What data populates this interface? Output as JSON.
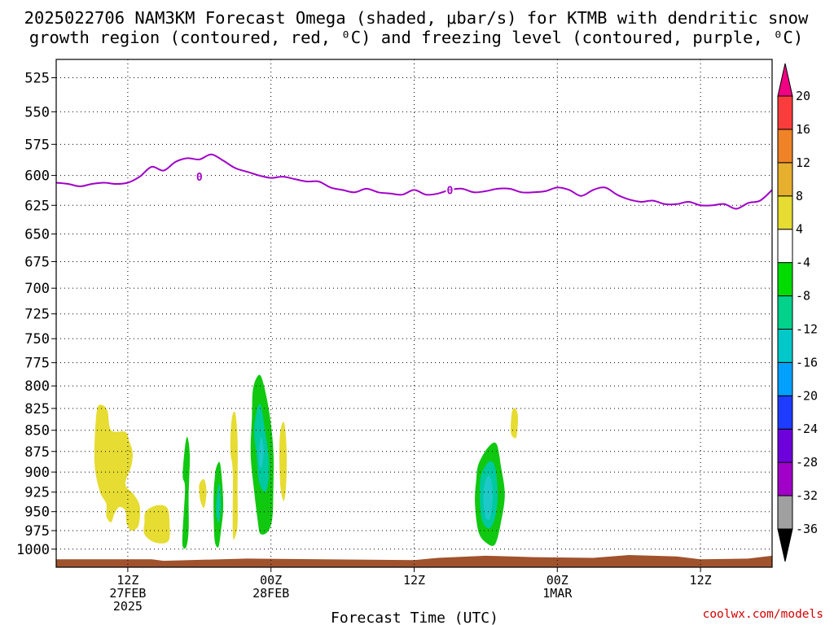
{
  "title": {
    "line1": "2025022706 NAM3KM Forecast Omega (shaded, μbar/s) for KTMB with dendritic snow",
    "line2": "growth region (contoured, red, ⁰C) and freezing level (contoured, purple, ⁰C)"
  },
  "credit": "coolwx.com/models",
  "chart_data": {
    "type": "time-height",
    "xlabel": "Forecast Time (UTC)",
    "ylabel": "",
    "x_unit": "forecast hour from 2025-02-27 06Z",
    "xlim": [
      0,
      60
    ],
    "y_unit": "hPa",
    "ylim": [
      1025,
      512
    ],
    "y_scale": "log",
    "yticks": [
      525,
      550,
      575,
      600,
      625,
      650,
      675,
      700,
      725,
      750,
      775,
      800,
      825,
      850,
      875,
      900,
      925,
      950,
      975,
      1000
    ],
    "x_ticks": [
      {
        "x": 6,
        "lines": [
          "12Z",
          "27FEB",
          "2025"
        ]
      },
      {
        "x": 18,
        "lines": [
          "00Z",
          "28FEB"
        ]
      },
      {
        "x": 30,
        "lines": [
          "12Z"
        ]
      },
      {
        "x": 42,
        "lines": [
          "00Z",
          "1MAR"
        ]
      },
      {
        "x": 54,
        "lines": [
          "12Z"
        ]
      }
    ],
    "grid": true,
    "freezing_level": {
      "label": "0",
      "label_positions": [
        [
          12,
          601
        ],
        [
          33,
          612
        ]
      ],
      "points": [
        [
          0,
          606
        ],
        [
          1,
          607
        ],
        [
          2,
          609
        ],
        [
          3,
          607
        ],
        [
          4,
          606
        ],
        [
          5,
          607
        ],
        [
          6,
          606
        ],
        [
          7,
          601
        ],
        [
          8,
          593
        ],
        [
          9,
          596
        ],
        [
          10,
          589
        ],
        [
          11,
          586
        ],
        [
          12,
          587
        ],
        [
          13,
          583
        ],
        [
          14,
          588
        ],
        [
          15,
          594
        ],
        [
          16,
          597
        ],
        [
          17,
          600
        ],
        [
          18,
          602
        ],
        [
          19,
          601
        ],
        [
          20,
          603
        ],
        [
          21,
          605
        ],
        [
          22,
          605
        ],
        [
          23,
          610
        ],
        [
          24,
          612
        ],
        [
          25,
          614
        ],
        [
          26,
          611
        ],
        [
          27,
          614
        ],
        [
          28,
          615
        ],
        [
          29,
          616
        ],
        [
          30,
          612
        ],
        [
          31,
          616
        ],
        [
          32,
          615
        ],
        [
          33,
          612
        ],
        [
          34,
          611
        ],
        [
          35,
          614
        ],
        [
          36,
          613
        ],
        [
          37,
          611
        ],
        [
          38,
          611
        ],
        [
          39,
          614
        ],
        [
          40,
          614
        ],
        [
          41,
          613
        ],
        [
          42,
          610
        ],
        [
          43,
          612
        ],
        [
          44,
          617
        ],
        [
          45,
          612
        ],
        [
          46,
          610
        ],
        [
          47,
          616
        ],
        [
          48,
          620
        ],
        [
          49,
          622
        ],
        [
          50,
          621
        ],
        [
          51,
          624
        ],
        [
          52,
          624
        ],
        [
          53,
          622
        ],
        [
          54,
          625
        ],
        [
          55,
          625
        ],
        [
          56,
          624
        ],
        [
          57,
          628
        ],
        [
          58,
          623
        ],
        [
          59,
          621
        ],
        [
          60,
          612
        ]
      ]
    },
    "omega_regions": [
      {
        "category": "4 to 8",
        "color": "#e6dc32",
        "points": [
          [
            3.4,
            828
          ],
          [
            3.8,
            821
          ],
          [
            4.3,
            828
          ],
          [
            4.6,
            850
          ],
          [
            5.8,
            852
          ],
          [
            6.1,
            862
          ],
          [
            6.4,
            876
          ],
          [
            6.3,
            892
          ],
          [
            5.8,
            915
          ],
          [
            6.5,
            928
          ],
          [
            7.0,
            943
          ],
          [
            6.9,
            968
          ],
          [
            6.3,
            975
          ],
          [
            5.9,
            965
          ],
          [
            5.8,
            949
          ],
          [
            5.3,
            944
          ],
          [
            4.9,
            952
          ],
          [
            4.6,
            964
          ],
          [
            4.2,
            956
          ],
          [
            4.2,
            940
          ],
          [
            3.7,
            926
          ],
          [
            3.3,
            901
          ],
          [
            3.2,
            874
          ]
        ]
      },
      {
        "category": "4 to 8",
        "color": "#e6dc32",
        "points": [
          [
            7.5,
            950
          ],
          [
            8.4,
            942
          ],
          [
            9.3,
            945
          ],
          [
            9.5,
            965
          ],
          [
            9.4,
            989
          ],
          [
            8.3,
            991
          ],
          [
            7.4,
            980
          ],
          [
            7.4,
            964
          ]
        ]
      },
      {
        "category": "4 to 8",
        "color": "#e6dc32",
        "points": [
          [
            12.0,
            915
          ],
          [
            12.4,
            909
          ],
          [
            12.6,
            925
          ],
          [
            12.4,
            945
          ],
          [
            12.1,
            937
          ],
          [
            12.0,
            926
          ]
        ]
      },
      {
        "category": "4 to 8",
        "color": "#e6dc32",
        "points": [
          [
            14.7,
            838
          ],
          [
            15.0,
            830
          ],
          [
            15.2,
            862
          ],
          [
            15.2,
            924
          ],
          [
            15.2,
            966
          ],
          [
            15.0,
            983
          ],
          [
            14.8,
            979
          ],
          [
            14.8,
            900
          ],
          [
            14.6,
            874
          ]
        ]
      },
      {
        "category": "4 to 8",
        "color": "#e6dc32",
        "points": [
          [
            18.8,
            850
          ],
          [
            19.1,
            841
          ],
          [
            19.3,
            868
          ],
          [
            19.3,
            908
          ],
          [
            19.1,
            936
          ],
          [
            18.8,
            919
          ],
          [
            18.7,
            876
          ]
        ]
      },
      {
        "category": "4 to 8",
        "color": "#e6dc32",
        "points": [
          [
            38.2,
            829
          ],
          [
            38.5,
            825
          ],
          [
            38.7,
            835
          ],
          [
            38.6,
            856
          ],
          [
            38.4,
            859
          ],
          [
            38.1,
            852
          ]
        ]
      },
      {
        "category": "-4 to -8",
        "color": "#10c810",
        "points": [
          [
            10.8,
            869
          ],
          [
            11.0,
            858
          ],
          [
            11.2,
            880
          ],
          [
            11.1,
            930
          ],
          [
            11.1,
            975
          ],
          [
            10.9,
            997
          ],
          [
            10.6,
            996
          ],
          [
            10.6,
            975
          ],
          [
            10.8,
            920
          ],
          [
            10.6,
            904
          ]
        ]
      },
      {
        "category": "-4 to -8",
        "color": "#10c810",
        "points": [
          [
            13.4,
            895
          ],
          [
            13.7,
            888
          ],
          [
            13.9,
            910
          ],
          [
            14.0,
            945
          ],
          [
            13.8,
            976
          ],
          [
            13.6,
            997
          ],
          [
            13.3,
            990
          ],
          [
            13.2,
            960
          ],
          [
            13.2,
            925
          ],
          [
            13.3,
            906
          ]
        ]
      },
      {
        "category": "-4 to -8",
        "color": "#10c810",
        "points": [
          [
            16.5,
            803
          ],
          [
            17.0,
            788
          ],
          [
            17.4,
            799
          ],
          [
            17.9,
            833
          ],
          [
            18.2,
            874
          ],
          [
            18.2,
            920
          ],
          [
            18.1,
            960
          ],
          [
            17.7,
            977
          ],
          [
            17.1,
            979
          ],
          [
            16.9,
            963
          ],
          [
            16.6,
            925
          ],
          [
            16.3,
            879
          ],
          [
            16.4,
            836
          ]
        ]
      },
      {
        "category": "-4 to -8",
        "color": "#10c810",
        "points": [
          [
            35.4,
            890
          ],
          [
            36.2,
            870
          ],
          [
            36.9,
            866
          ],
          [
            37.3,
            895
          ],
          [
            37.6,
            928
          ],
          [
            37.3,
            962
          ],
          [
            36.8,
            993
          ],
          [
            36.1,
            992
          ],
          [
            35.4,
            977
          ],
          [
            35.1,
            940
          ],
          [
            35.2,
            910
          ]
        ]
      },
      {
        "category": "-8 to -12",
        "color": "#00c8a0",
        "points": [
          [
            16.7,
            835
          ],
          [
            17.1,
            820
          ],
          [
            17.5,
            850
          ],
          [
            17.8,
            880
          ],
          [
            17.8,
            910
          ],
          [
            17.5,
            925
          ],
          [
            17.0,
            912
          ],
          [
            16.8,
            880
          ],
          [
            16.6,
            855
          ]
        ]
      },
      {
        "category": "-8 to -12",
        "color": "#00c8a0",
        "points": [
          [
            13.5,
            925
          ],
          [
            13.7,
            915
          ],
          [
            13.8,
            945
          ],
          [
            13.6,
            965
          ],
          [
            13.4,
            950
          ]
        ]
      },
      {
        "category": "-8 to -12",
        "color": "#00c8a0",
        "points": [
          [
            35.6,
            905
          ],
          [
            36.3,
            887
          ],
          [
            36.8,
            895
          ],
          [
            37.0,
            928
          ],
          [
            36.8,
            957
          ],
          [
            36.3,
            972
          ],
          [
            35.7,
            962
          ],
          [
            35.5,
            935
          ]
        ]
      },
      {
        "category": "-12 to -16",
        "color": "#1ec8c8",
        "points": [
          [
            17.0,
            872
          ],
          [
            17.2,
            858
          ],
          [
            17.4,
            876
          ],
          [
            17.2,
            894
          ],
          [
            17.0,
            890
          ]
        ]
      },
      {
        "category": "-12 to -16",
        "color": "#1ec8c8",
        "points": [
          [
            35.9,
            915
          ],
          [
            36.3,
            904
          ],
          [
            36.6,
            925
          ],
          [
            36.4,
            957
          ],
          [
            36.0,
            958
          ],
          [
            35.8,
            938
          ]
        ]
      }
    ],
    "terrain": {
      "color": "#a0522d",
      "points": [
        [
          0,
          1014
        ],
        [
          8,
          1014
        ],
        [
          9,
          1016
        ],
        [
          16,
          1013
        ],
        [
          30,
          1015
        ],
        [
          32,
          1012
        ],
        [
          36,
          1009
        ],
        [
          40,
          1011
        ],
        [
          45,
          1012
        ],
        [
          48,
          1008
        ],
        [
          52,
          1010
        ],
        [
          54,
          1014
        ],
        [
          58,
          1013
        ],
        [
          60,
          1009
        ]
      ]
    },
    "colorbar": {
      "colors": [
        "#000000",
        "#a0a0a0",
        "#a000c8",
        "#6e00dc",
        "#1e3cff",
        "#00a0ff",
        "#00c8c8",
        "#00d28c",
        "#00dc00",
        "#ffffff",
        "#e6dc32",
        "#e6af2d",
        "#f08228",
        "#fa3c3c",
        "#f00082"
      ],
      "labels": [
        "-36",
        "-32",
        "-28",
        "-24",
        "-20",
        "-16",
        "-12",
        "-8",
        "-4",
        "4",
        "8",
        "12",
        "16",
        "20"
      ]
    }
  }
}
